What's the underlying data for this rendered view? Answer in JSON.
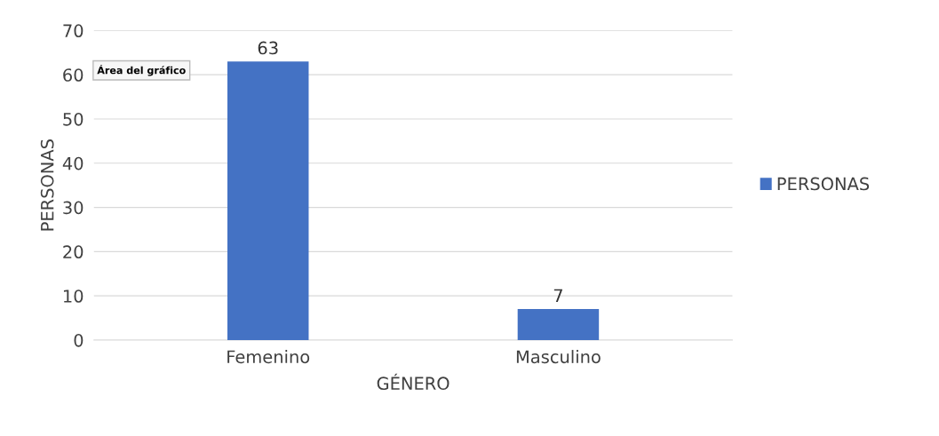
{
  "chart_data": {
    "type": "bar",
    "xlabel": "GÉNERO",
    "ylabel": "PERSONAS",
    "categories": [
      "Femenino",
      "Masculino"
    ],
    "series": [
      {
        "name": "PERSONAS",
        "color": "#4472c4",
        "values": [
          63,
          7
        ]
      }
    ],
    "ylim": [
      0,
      70
    ],
    "yticks": [
      0,
      10,
      20,
      30,
      40,
      50,
      60,
      70
    ],
    "grid": "y",
    "legend": "right",
    "data_labels": true,
    "annotations": [
      "Área del gráfico"
    ]
  }
}
